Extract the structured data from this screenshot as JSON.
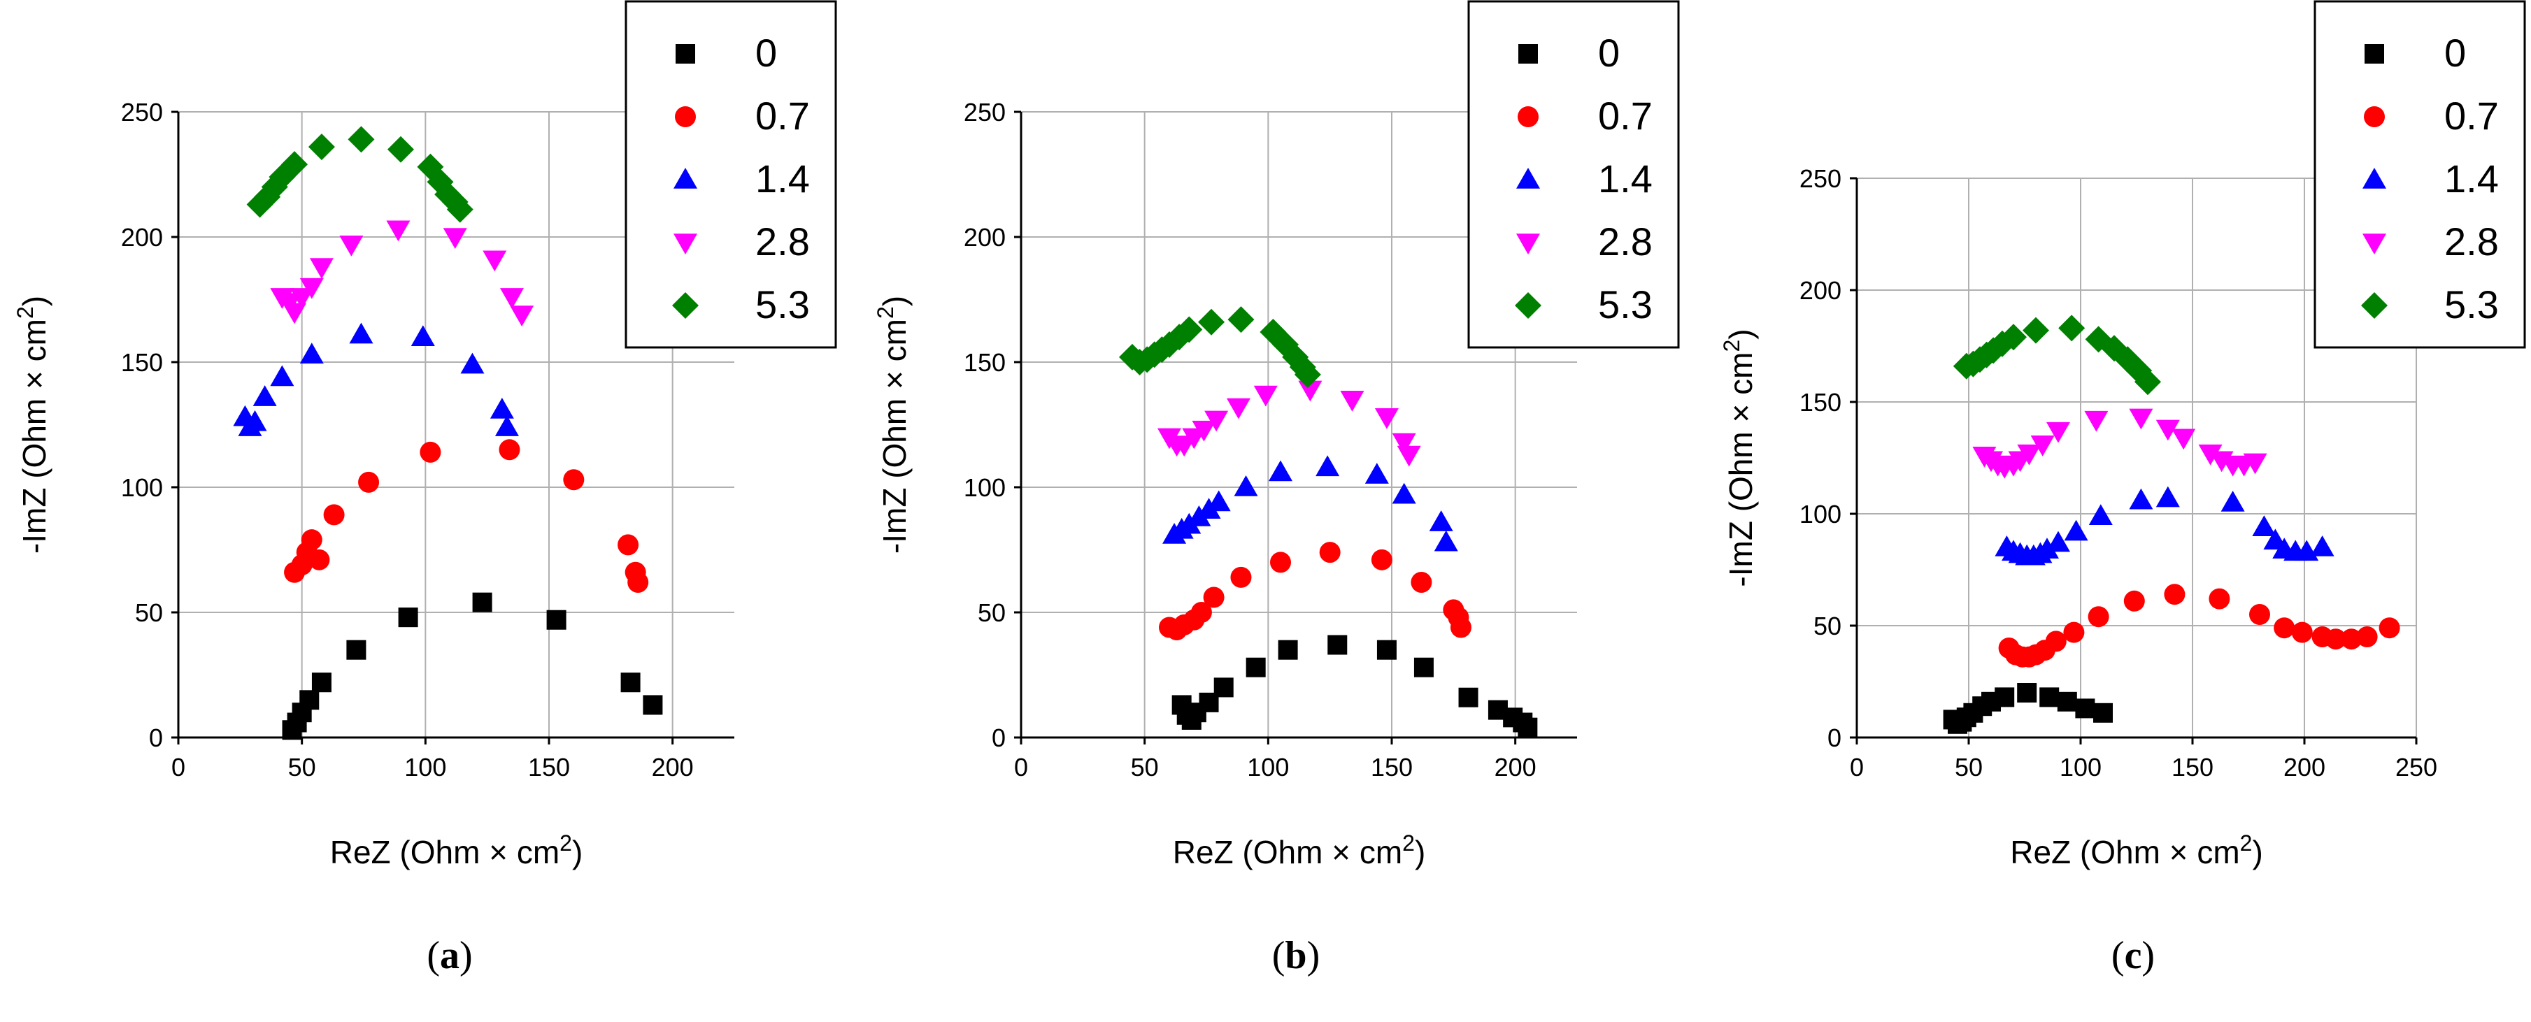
{
  "figure": {
    "panels_count": 3
  },
  "chart_data": [
    {
      "type": "scatter",
      "caption_letter": "a",
      "caption_prefix": "(",
      "caption_suffix": ")",
      "xlabel": "ReZ (Ohm × cm",
      "xlabel_sup": "2",
      "xlabel_end": ")",
      "ylabel": "-ImZ (Ohm × cm",
      "ylabel_sup": "2",
      "ylabel_end": ")",
      "xlim": [
        0,
        225
      ],
      "ylim": [
        0,
        250
      ],
      "xticks": [
        0,
        50,
        100,
        150,
        200
      ],
      "yticks": [
        0,
        50,
        100,
        150,
        200,
        250
      ],
      "grid": true,
      "legend_position": "top-right",
      "series": [
        {
          "name": "0",
          "marker": "square",
          "color": "#000000",
          "points": [
            [
              46,
              3
            ],
            [
              48,
              6
            ],
            [
              50,
              10
            ],
            [
              53,
              15
            ],
            [
              58,
              22
            ],
            [
              72,
              35
            ],
            [
              93,
              48
            ],
            [
              123,
              54
            ],
            [
              153,
              47
            ],
            [
              183,
              22
            ],
            [
              192,
              13
            ]
          ]
        },
        {
          "name": "0.7",
          "marker": "circle",
          "color": "#ff0000",
          "points": [
            [
              47,
              66
            ],
            [
              50,
              69
            ],
            [
              52,
              74
            ],
            [
              54,
              79
            ],
            [
              57,
              71
            ],
            [
              63,
              89
            ],
            [
              77,
              102
            ],
            [
              102,
              114
            ],
            [
              134,
              115
            ],
            [
              160,
              103
            ],
            [
              182,
              77
            ],
            [
              185,
              66
            ],
            [
              186,
              62
            ]
          ]
        },
        {
          "name": "1.4",
          "marker": "triangle-up",
          "color": "#0000ff",
          "points": [
            [
              27,
              128
            ],
            [
              29,
              124
            ],
            [
              31,
              126
            ],
            [
              35,
              136
            ],
            [
              42,
              144
            ],
            [
              54,
              153
            ],
            [
              74,
              161
            ],
            [
              99,
              160
            ],
            [
              119,
              149
            ],
            [
              131,
              131
            ],
            [
              133,
              124
            ]
          ]
        },
        {
          "name": "2.8",
          "marker": "triangle-down",
          "color": "#ff00ff",
          "points": [
            [
              42,
              176
            ],
            [
              45,
              174
            ],
            [
              47,
              170
            ],
            [
              50,
              176
            ],
            [
              54,
              180
            ],
            [
              58,
              188
            ],
            [
              70,
              197
            ],
            [
              89,
              203
            ],
            [
              112,
              200
            ],
            [
              128,
              191
            ],
            [
              135,
              176
            ],
            [
              139,
              169
            ]
          ]
        },
        {
          "name": "5.3",
          "marker": "diamond",
          "color": "#008000",
          "points": [
            [
              33,
              213
            ],
            [
              36,
              216
            ],
            [
              39,
              220
            ],
            [
              42,
              224
            ],
            [
              47,
              229
            ],
            [
              58,
              236
            ],
            [
              74,
              239
            ],
            [
              90,
              235
            ],
            [
              102,
              228
            ],
            [
              106,
              222
            ],
            [
              109,
              217
            ],
            [
              112,
              214
            ],
            [
              114,
              211
            ]
          ]
        }
      ]
    },
    {
      "type": "scatter",
      "caption_letter": "b",
      "caption_prefix": "(",
      "caption_suffix": ")",
      "xlabel": "ReZ (Ohm × cm",
      "xlabel_sup": "2",
      "xlabel_end": ")",
      "ylabel": "-ImZ (Ohm × cm",
      "ylabel_sup": "2",
      "ylabel_end": ")",
      "xlim": [
        0,
        225
      ],
      "ylim": [
        0,
        250
      ],
      "xticks": [
        0,
        50,
        100,
        150,
        200
      ],
      "yticks": [
        0,
        50,
        100,
        150,
        200,
        250
      ],
      "grid": true,
      "legend_position": "top-right",
      "series": [
        {
          "name": "0",
          "marker": "square",
          "color": "#000000",
          "points": [
            [
              65,
              13
            ],
            [
              67,
              9
            ],
            [
              69,
              7
            ],
            [
              71,
              10
            ],
            [
              76,
              14
            ],
            [
              82,
              20
            ],
            [
              95,
              28
            ],
            [
              108,
              35
            ],
            [
              128,
              37
            ],
            [
              148,
              35
            ],
            [
              163,
              28
            ],
            [
              181,
              16
            ],
            [
              193,
              11
            ],
            [
              199,
              8
            ],
            [
              203,
              6
            ],
            [
              205,
              4
            ]
          ]
        },
        {
          "name": "0.7",
          "marker": "circle",
          "color": "#ff0000",
          "points": [
            [
              60,
              44
            ],
            [
              63,
              43
            ],
            [
              66,
              45
            ],
            [
              70,
              47
            ],
            [
              73,
              50
            ],
            [
              78,
              56
            ],
            [
              89,
              64
            ],
            [
              105,
              70
            ],
            [
              125,
              74
            ],
            [
              146,
              71
            ],
            [
              162,
              62
            ],
            [
              175,
              51
            ],
            [
              177,
              48
            ],
            [
              178,
              44
            ]
          ]
        },
        {
          "name": "1.4",
          "marker": "triangle-up",
          "color": "#0000ff",
          "points": [
            [
              62,
              81
            ],
            [
              65,
              83
            ],
            [
              68,
              85
            ],
            [
              72,
              88
            ],
            [
              76,
              91
            ],
            [
              80,
              94
            ],
            [
              91,
              100
            ],
            [
              105,
              106
            ],
            [
              124,
              108
            ],
            [
              144,
              105
            ],
            [
              155,
              97
            ],
            [
              170,
              86
            ],
            [
              172,
              78
            ]
          ]
        },
        {
          "name": "2.8",
          "marker": "triangle-down",
          "color": "#ff00ff",
          "points": [
            [
              60,
              120
            ],
            [
              63,
              117
            ],
            [
              66,
              117
            ],
            [
              70,
              120
            ],
            [
              74,
              123
            ],
            [
              79,
              127
            ],
            [
              88,
              132
            ],
            [
              99,
              137
            ],
            [
              117,
              139
            ],
            [
              134,
              135
            ],
            [
              148,
              128
            ],
            [
              155,
              118
            ],
            [
              157,
              113
            ]
          ]
        },
        {
          "name": "5.3",
          "marker": "diamond",
          "color": "#008000",
          "points": [
            [
              45,
              152
            ],
            [
              48,
              150
            ],
            [
              51,
              151
            ],
            [
              54,
              153
            ],
            [
              57,
              155
            ],
            [
              60,
              157
            ],
            [
              64,
              160
            ],
            [
              68,
              163
            ],
            [
              77,
              166
            ],
            [
              89,
              167
            ],
            [
              102,
              162
            ],
            [
              107,
              157
            ],
            [
              111,
              152
            ],
            [
              114,
              148
            ],
            [
              116,
              145
            ]
          ]
        }
      ]
    },
    {
      "type": "scatter",
      "caption_letter": "c",
      "caption_prefix": "(",
      "caption_suffix": ")",
      "xlabel": "ReZ (Ohm × cm",
      "xlabel_sup": "2",
      "xlabel_end": ")",
      "ylabel": "-ImZ (Ohm × cm",
      "ylabel_sup": "2",
      "ylabel_end": ")",
      "xlim": [
        0,
        250
      ],
      "ylim": [
        0,
        250
      ],
      "xticks": [
        0,
        50,
        100,
        150,
        200,
        250
      ],
      "yticks": [
        0,
        50,
        100,
        150,
        200,
        250
      ],
      "grid": true,
      "legend_position": "top-right",
      "series": [
        {
          "name": "0",
          "marker": "square",
          "color": "#000000",
          "points": [
            [
              43,
              8
            ],
            [
              45,
              6
            ],
            [
              47,
              7
            ],
            [
              49,
              9
            ],
            [
              52,
              11
            ],
            [
              56,
              14
            ],
            [
              60,
              16
            ],
            [
              66,
              18
            ],
            [
              76,
              20
            ],
            [
              86,
              18
            ],
            [
              94,
              16
            ],
            [
              102,
              13
            ],
            [
              110,
              11
            ]
          ]
        },
        {
          "name": "0.7",
          "marker": "circle",
          "color": "#ff0000",
          "points": [
            [
              68,
              40
            ],
            [
              71,
              37
            ],
            [
              74,
              36
            ],
            [
              77,
              36
            ],
            [
              80,
              37
            ],
            [
              84,
              39
            ],
            [
              89,
              43
            ],
            [
              97,
              47
            ],
            [
              108,
              54
            ],
            [
              124,
              61
            ],
            [
              142,
              64
            ],
            [
              162,
              62
            ],
            [
              180,
              55
            ],
            [
              191,
              49
            ],
            [
              199,
              47
            ],
            [
              208,
              45
            ],
            [
              214,
              44
            ],
            [
              221,
              44
            ],
            [
              228,
              45
            ],
            [
              238,
              49
            ]
          ]
        },
        {
          "name": "1.4",
          "marker": "triangle-up",
          "color": "#0000ff",
          "points": [
            [
              67,
              85
            ],
            [
              70,
              83
            ],
            [
              73,
              82
            ],
            [
              76,
              81
            ],
            [
              79,
              81
            ],
            [
              82,
              82
            ],
            [
              85,
              84
            ],
            [
              90,
              87
            ],
            [
              98,
              92
            ],
            [
              109,
              99
            ],
            [
              127,
              106
            ],
            [
              139,
              107
            ],
            [
              168,
              105
            ],
            [
              182,
              94
            ],
            [
              187,
              88
            ],
            [
              191,
              84
            ],
            [
              196,
              83
            ],
            [
              201,
              83
            ],
            [
              208,
              85
            ]
          ]
        },
        {
          "name": "2.8",
          "marker": "triangle-down",
          "color": "#ff00ff",
          "points": [
            [
              57,
              126
            ],
            [
              60,
              124
            ],
            [
              63,
              122
            ],
            [
              66,
              121
            ],
            [
              70,
              122
            ],
            [
              73,
              124
            ],
            [
              77,
              127
            ],
            [
              83,
              131
            ],
            [
              90,
              137
            ],
            [
              107,
              142
            ],
            [
              127,
              143
            ],
            [
              139,
              138
            ],
            [
              146,
              134
            ],
            [
              158,
              127
            ],
            [
              163,
              124
            ],
            [
              168,
              122
            ],
            [
              173,
              122
            ],
            [
              178,
              123
            ]
          ]
        },
        {
          "name": "5.3",
          "marker": "diamond",
          "color": "#008000",
          "points": [
            [
              49,
              166
            ],
            [
              52,
              167
            ],
            [
              55,
              169
            ],
            [
              58,
              171
            ],
            [
              61,
              173
            ],
            [
              65,
              176
            ],
            [
              70,
              179
            ],
            [
              80,
              182
            ],
            [
              96,
              183
            ],
            [
              108,
              178
            ],
            [
              115,
              174
            ],
            [
              121,
              169
            ],
            [
              126,
              164
            ],
            [
              130,
              159
            ]
          ]
        }
      ]
    }
  ]
}
